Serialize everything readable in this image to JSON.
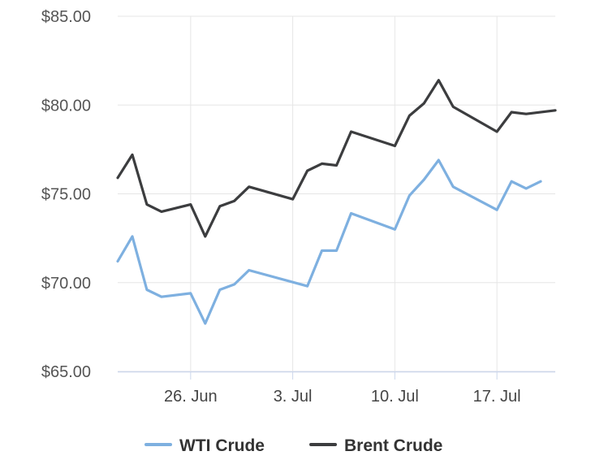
{
  "chart_data": {
    "type": "line",
    "title": "",
    "xlabel": "",
    "ylabel": "",
    "ylim": [
      65,
      85
    ],
    "y_ticks": [
      "$65.00",
      "$70.00",
      "$75.00",
      "$80.00",
      "$85.00"
    ],
    "y_tick_values": [
      65,
      70,
      75,
      80,
      85
    ],
    "x_tick_labels": [
      "26. Jun",
      "3. Jul",
      "10. Jul",
      "17. Jul"
    ],
    "x_tick_dates": [
      "2023-06-26",
      "2023-07-03",
      "2023-07-10",
      "2023-07-17"
    ],
    "x_range": [
      "2023-06-21",
      "2023-07-21"
    ],
    "grid": true,
    "legend_position": "bottom-center",
    "colors": {
      "wti": "#7EB0E0",
      "brent": "#3C3D3F",
      "grid": "#E6E6E6",
      "axis": "#CCD6EB"
    },
    "series": [
      {
        "name": "WTI Crude",
        "color": "#7EB0E0",
        "points": [
          {
            "x": "2023-06-21",
            "y": 71.2
          },
          {
            "x": "2023-06-22",
            "y": 72.6
          },
          {
            "x": "2023-06-23",
            "y": 69.6
          },
          {
            "x": "2023-06-24",
            "y": 69.2
          },
          {
            "x": "2023-06-26",
            "y": 69.4
          },
          {
            "x": "2023-06-27",
            "y": 67.7
          },
          {
            "x": "2023-06-28",
            "y": 69.6
          },
          {
            "x": "2023-06-29",
            "y": 69.9
          },
          {
            "x": "2023-06-30",
            "y": 70.7
          },
          {
            "x": "2023-07-04",
            "y": 69.8
          },
          {
            "x": "2023-07-05",
            "y": 71.8
          },
          {
            "x": "2023-07-06",
            "y": 71.8
          },
          {
            "x": "2023-07-07",
            "y": 73.9
          },
          {
            "x": "2023-07-10",
            "y": 73.0
          },
          {
            "x": "2023-07-11",
            "y": 74.9
          },
          {
            "x": "2023-07-12",
            "y": 75.8
          },
          {
            "x": "2023-07-13",
            "y": 76.9
          },
          {
            "x": "2023-07-14",
            "y": 75.4
          },
          {
            "x": "2023-07-17",
            "y": 74.1
          },
          {
            "x": "2023-07-18",
            "y": 75.7
          },
          {
            "x": "2023-07-19",
            "y": 75.3
          },
          {
            "x": "2023-07-20",
            "y": 75.7
          }
        ]
      },
      {
        "name": "Brent Crude",
        "color": "#3C3D3F",
        "points": [
          {
            "x": "2023-06-21",
            "y": 75.9
          },
          {
            "x": "2023-06-22",
            "y": 77.2
          },
          {
            "x": "2023-06-23",
            "y": 74.4
          },
          {
            "x": "2023-06-24",
            "y": 74.0
          },
          {
            "x": "2023-06-26",
            "y": 74.4
          },
          {
            "x": "2023-06-27",
            "y": 72.6
          },
          {
            "x": "2023-06-28",
            "y": 74.3
          },
          {
            "x": "2023-06-29",
            "y": 74.6
          },
          {
            "x": "2023-06-30",
            "y": 75.4
          },
          {
            "x": "2023-07-03",
            "y": 74.7
          },
          {
            "x": "2023-07-04",
            "y": 76.3
          },
          {
            "x": "2023-07-05",
            "y": 76.7
          },
          {
            "x": "2023-07-06",
            "y": 76.6
          },
          {
            "x": "2023-07-07",
            "y": 78.5
          },
          {
            "x": "2023-07-10",
            "y": 77.7
          },
          {
            "x": "2023-07-11",
            "y": 79.4
          },
          {
            "x": "2023-07-12",
            "y": 80.1
          },
          {
            "x": "2023-07-13",
            "y": 81.4
          },
          {
            "x": "2023-07-14",
            "y": 79.9
          },
          {
            "x": "2023-07-17",
            "y": 78.5
          },
          {
            "x": "2023-07-18",
            "y": 79.6
          },
          {
            "x": "2023-07-19",
            "y": 79.5
          },
          {
            "x": "2023-07-21",
            "y": 79.7
          }
        ]
      }
    ]
  }
}
